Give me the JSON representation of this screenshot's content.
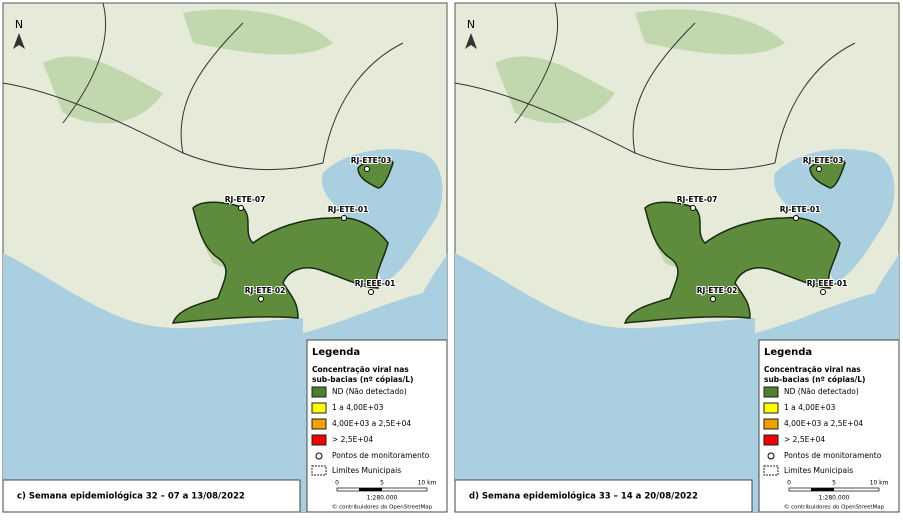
{
  "north": "N",
  "stations": [
    "RJ-ETE-07",
    "RJ-ETE-03",
    "RJ-ETE-01",
    "RJ-ETE-02",
    "RJ-EEE-01"
  ],
  "legend": {
    "title": "Legenda",
    "subtitle": [
      "Concentração viral nas",
      "sub-bacias (nº cópias/L)"
    ],
    "classes": [
      {
        "label": "ND (Não detectado)",
        "color": "#4f7f2f"
      },
      {
        "label": "1 a 4,00E+03",
        "color": "#ffff00"
      },
      {
        "label": "4,00E+03 a 2,5E+04",
        "color": "#f0a000"
      },
      {
        "label": "> 2,5E+04",
        "color": "#ee0000"
      }
    ],
    "points": "Pontos de monitoramento",
    "limits": "Limites Municipais",
    "scale_ticks": [
      "0",
      "5",
      "10 km"
    ],
    "scale": "1:280.000",
    "credit": "© contribuidores do OpenStreetMap"
  },
  "panels": [
    {
      "caption": "c) Semana epidemiológica 32 – 07 a 13/08/2022"
    },
    {
      "caption": "d) Semana epidemiológica 33 – 14 a 20/08/2022"
    }
  ]
}
